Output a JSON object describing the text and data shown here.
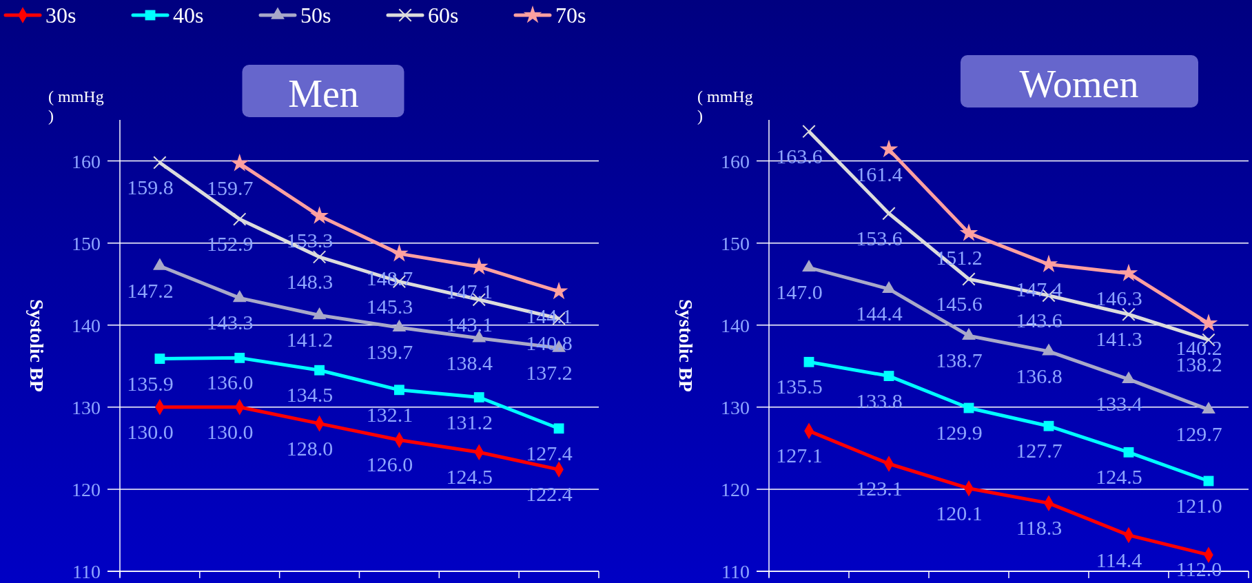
{
  "chart_data": [
    {
      "type": "line",
      "title": "Men",
      "ylabel": "Systolic BP",
      "annotations": [
        "( mmHg )"
      ],
      "categories": [
        null,
        null,
        null,
        null,
        null,
        null
      ],
      "ylim": [
        110,
        165
      ],
      "yticks": [
        110,
        120,
        130,
        140,
        150,
        160
      ],
      "grid": "y",
      "legend": "top",
      "series": [
        {
          "name": "30s",
          "color": "#ff0000",
          "marker": "diamond",
          "values": [
            130.0,
            130.0,
            128.0,
            126.0,
            124.5,
            122.4
          ],
          "value_labels": [
            "130.0",
            "130.0",
            "128.0",
            "126.0",
            "124.5",
            "122.4"
          ]
        },
        {
          "name": "40s",
          "color": "#00ffff",
          "marker": "square",
          "values": [
            135.9,
            136.0,
            134.5,
            132.1,
            131.2,
            127.4
          ],
          "value_labels": [
            "135.9",
            "136.0",
            "134.5",
            "132.1",
            "131.2",
            "127.4"
          ]
        },
        {
          "name": "50s",
          "color": "#a9a9c9",
          "marker": "triangle",
          "values": [
            147.2,
            143.3,
            141.2,
            139.7,
            138.4,
            137.2
          ],
          "value_labels": [
            "147.2",
            "143.3",
            "141.2",
            "139.7",
            "138.4",
            "137.2"
          ]
        },
        {
          "name": "60s",
          "color": "#dcdcdc",
          "marker": "cross",
          "values": [
            159.8,
            152.9,
            148.3,
            145.3,
            143.1,
            140.8
          ],
          "value_labels": [
            "159.8",
            "152.9",
            "148.3",
            "145.3",
            "143.1",
            "140.8"
          ]
        },
        {
          "name": "70s",
          "color": "#ffa0a0",
          "marker": "star",
          "values": [
            null,
            159.7,
            153.3,
            148.7,
            147.1,
            144.1
          ],
          "value_labels": [
            null,
            "159.7",
            "153.3",
            "148.7",
            "147.1",
            "144.1"
          ]
        }
      ]
    },
    {
      "type": "line",
      "title": "Women",
      "ylabel": "Systolic BP",
      "annotations": [
        "( mmHg )"
      ],
      "categories": [
        null,
        null,
        null,
        null,
        null,
        null
      ],
      "ylim": [
        110,
        165
      ],
      "yticks": [
        110,
        120,
        130,
        140,
        150,
        160
      ],
      "grid": "y",
      "series": [
        {
          "color": "#ff0000",
          "marker": "diamond",
          "values": [
            127.1,
            123.1,
            120.1,
            118.3,
            114.4,
            112.0
          ],
          "value_labels": [
            "127.1",
            "123.1",
            "120.1",
            "118.3",
            "114.4",
            "112.0"
          ]
        },
        {
          "color": "#00ffff",
          "marker": "square",
          "values": [
            135.5,
            133.8,
            129.9,
            127.7,
            124.5,
            121.0
          ],
          "value_labels": [
            "135.5",
            "133.8",
            "129.9",
            "127.7",
            "124.5",
            "121.0"
          ]
        },
        {
          "color": "#a9a9c9",
          "marker": "triangle",
          "values": [
            147.0,
            144.4,
            138.7,
            136.8,
            133.4,
            129.7
          ],
          "value_labels": [
            "147.0",
            "144.4",
            "138.7",
            "136.8",
            "133.4",
            "129.7"
          ]
        },
        {
          "color": "#dcdcdc",
          "marker": "cross",
          "values": [
            163.6,
            153.6,
            145.6,
            143.6,
            141.3,
            138.2
          ],
          "value_labels": [
            "163.6",
            "153.6",
            "145.6",
            "143.6",
            "141.3",
            "138.2"
          ]
        },
        {
          "color": "#ffa0a0",
          "marker": "star",
          "values": [
            null,
            161.4,
            151.2,
            147.4,
            146.3,
            140.2
          ],
          "value_labels": [
            null,
            "161.4",
            "151.2",
            "147.4",
            "146.3",
            "140.2"
          ]
        }
      ]
    }
  ]
}
